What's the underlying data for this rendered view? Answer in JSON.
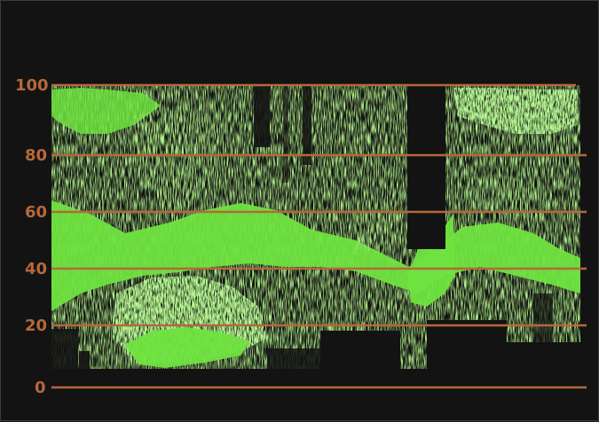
{
  "scope": {
    "type": "waveform-monitor",
    "trace_color": "#6fe33f",
    "graticule_color": "#b5683a",
    "background_color": "#131313",
    "scale_labels": [
      "100",
      "80",
      "60",
      "40",
      "20",
      "0"
    ]
  }
}
